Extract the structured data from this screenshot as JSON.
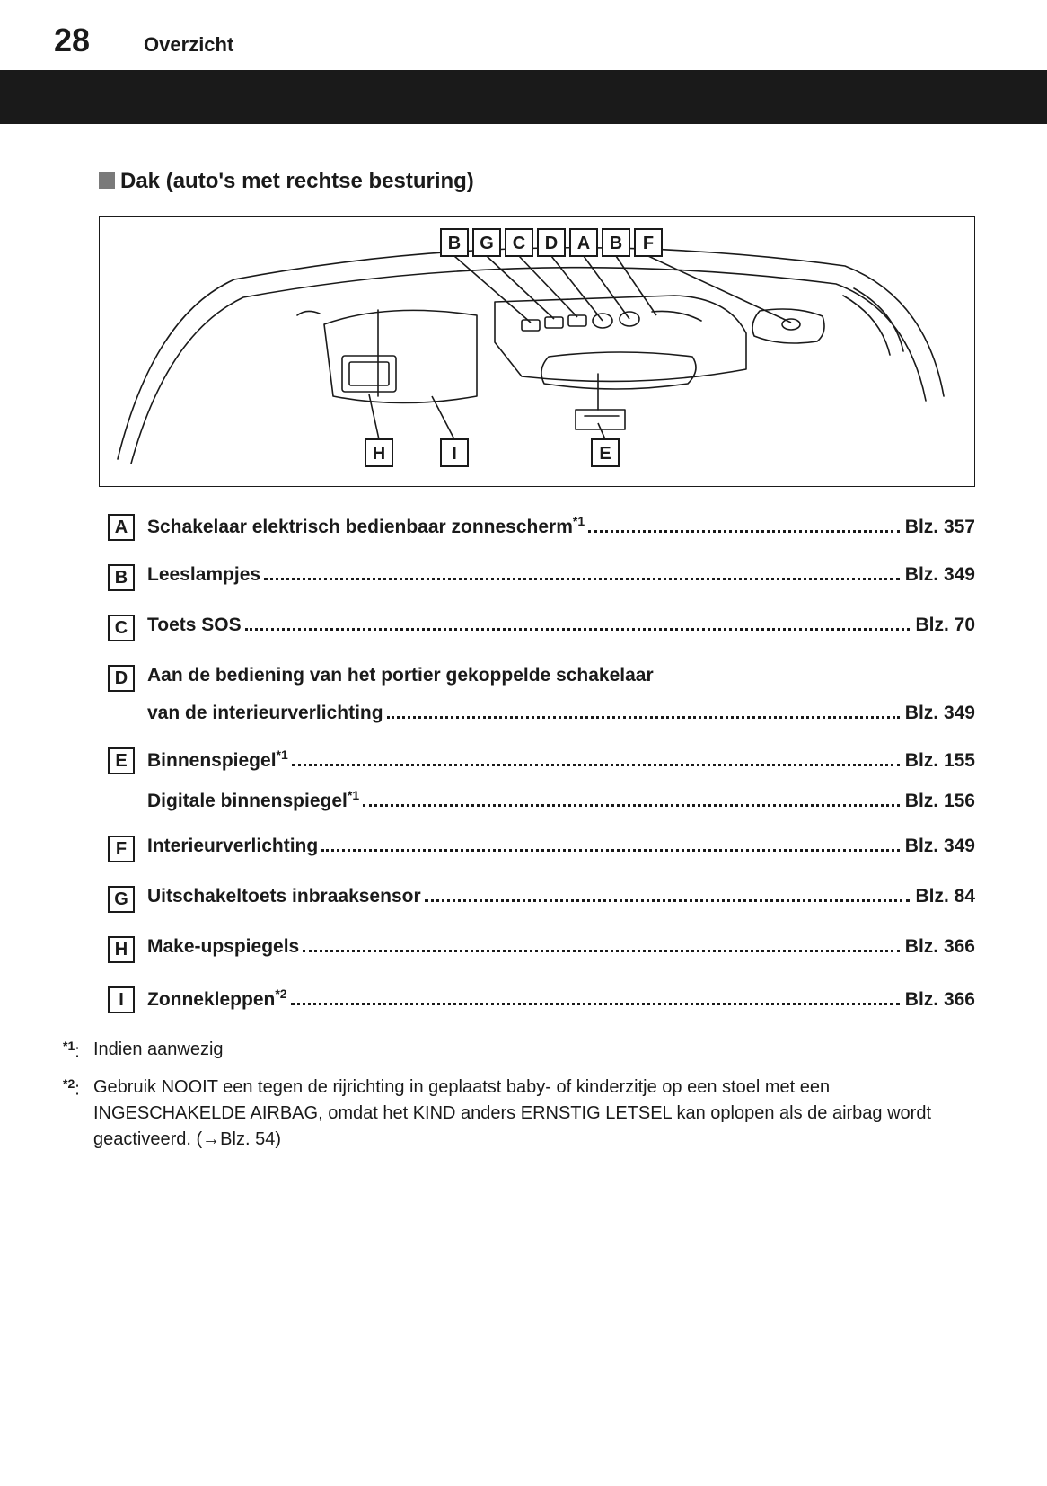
{
  "page_number": "28",
  "header_title": "Overzicht",
  "section_title": "Dak (auto's met rechtse besturing)",
  "diagram": {
    "top_labels": [
      "B",
      "G",
      "C",
      "D",
      "A",
      "B",
      "F"
    ],
    "bottom_labels": [
      "H",
      "I",
      "E"
    ],
    "colors": {
      "stroke": "#1a1a1a",
      "box_fill": "#ffffff",
      "line_width": 1.6
    }
  },
  "toc": [
    {
      "letter": "A",
      "label": "Schakelaar elektrisch bedienbaar zonnescherm",
      "sup": "*1",
      "page": "Blz. 357"
    },
    {
      "letter": "B",
      "label": "Leeslampjes",
      "page": "Blz. 349"
    },
    {
      "letter": "C",
      "label": "Toets SOS",
      "page": "Blz. 70"
    },
    {
      "letter": "D",
      "label": "Aan de bediening van het portier gekoppelde schakelaar",
      "cont": "van de interieurverlichting",
      "page": "Blz. 349"
    },
    {
      "letter": "E",
      "label": "Binnenspiegel",
      "sup": "*1",
      "page": "Blz. 155",
      "extra": {
        "label": "Digitale binnenspiegel",
        "sup": "*1",
        "page": "Blz. 156"
      }
    },
    {
      "letter": "F",
      "label": "Interieurverlichting",
      "page": "Blz. 349"
    },
    {
      "letter": "G",
      "label": "Uitschakeltoets inbraaksensor",
      "page": "Blz. 84"
    },
    {
      "letter": "H",
      "label": "Make-upspiegels",
      "page": "Blz. 366"
    },
    {
      "letter": "I",
      "label": "Zonnekleppen",
      "sup": "*2",
      "page": "Blz. 366"
    }
  ],
  "footnotes": [
    {
      "mark": "*1",
      "text": "Indien aanwezig"
    },
    {
      "mark": "*2",
      "text": "Gebruik NOOIT een tegen de rijrichting in geplaatst baby- of kinderzitje op een stoel met een INGESCHAKELDE AIRBAG, omdat het KIND anders ERNSTIG LETSEL kan oplopen als de airbag wordt geactiveerd. (→Blz. 54)"
    }
  ]
}
